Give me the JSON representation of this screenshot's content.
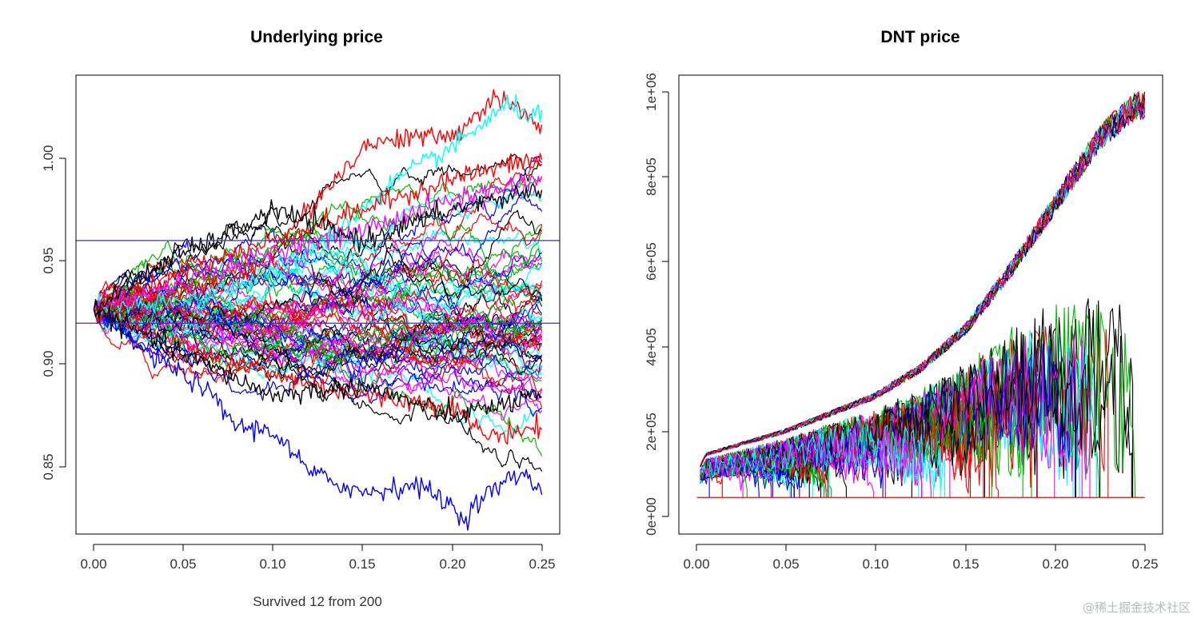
{
  "watermark": "@稀土掘金技术社区",
  "palette": {
    "black": "#000000",
    "red": "#ff0000",
    "green": "#00bb00",
    "blue": "#0000ff",
    "cyan": "#00ffff",
    "magenta": "#ff00ff",
    "barrier_line": "#3333cc"
  },
  "chart_data": [
    {
      "type": "line",
      "title": "Underlying price",
      "xlabel": "Survived 12 from 200",
      "ylabel": "",
      "xlim": [
        -0.01,
        0.26
      ],
      "ylim": [
        0.818,
        1.04
      ],
      "xticks": [
        0.0,
        0.05,
        0.1,
        0.15,
        0.2,
        0.25
      ],
      "xtick_labels": [
        "0.00",
        "0.05",
        "0.10",
        "0.15",
        "0.20",
        "0.25"
      ],
      "yticks": [
        0.85,
        0.9,
        0.95,
        1.0
      ],
      "ytick_labels": [
        "0.85",
        "0.90",
        "0.95",
        "1.00"
      ],
      "grid": false,
      "n_paths": 200,
      "start_value": 0.9266,
      "horizontal_lines": [
        0.92,
        0.96
      ],
      "series_colors": [
        "black",
        "red",
        "green",
        "blue",
        "cyan",
        "magenta"
      ],
      "highlighted_paths": [
        {
          "color": "red",
          "x": [
            0,
            0.05,
            0.08,
            0.1,
            0.12,
            0.15,
            0.17,
            0.2,
            0.225,
            0.25
          ],
          "y": [
            0.9266,
            0.935,
            0.94,
            0.955,
            0.975,
            1.005,
            1.01,
            1.01,
            1.03,
            1.015
          ]
        },
        {
          "color": "cyan",
          "x": [
            0,
            0.05,
            0.1,
            0.13,
            0.15,
            0.17,
            0.2,
            0.23,
            0.25
          ],
          "y": [
            0.9266,
            0.93,
            0.945,
            0.96,
            0.975,
            0.99,
            1.005,
            1.025,
            1.02
          ]
        },
        {
          "color": "blue",
          "x": [
            0,
            0.03,
            0.06,
            0.08,
            0.1,
            0.12,
            0.15,
            0.18,
            0.2,
            0.205,
            0.22,
            0.24,
            0.25
          ],
          "y": [
            0.9266,
            0.905,
            0.89,
            0.87,
            0.868,
            0.848,
            0.838,
            0.842,
            0.832,
            0.825,
            0.838,
            0.848,
            0.838
          ]
        },
        {
          "color": "red",
          "x": [
            0,
            0.05,
            0.1,
            0.15,
            0.2,
            0.22,
            0.25
          ],
          "y": [
            0.9266,
            0.91,
            0.895,
            0.885,
            0.88,
            0.865,
            0.87
          ]
        },
        {
          "color": "red",
          "x": [
            0,
            0.05,
            0.1,
            0.15,
            0.2,
            0.25
          ],
          "y": [
            0.9266,
            0.945,
            0.96,
            0.975,
            0.99,
            1.0
          ]
        },
        {
          "color": "magenta",
          "x": [
            0,
            0.05,
            0.1,
            0.15,
            0.2,
            0.25
          ],
          "y": [
            0.9266,
            0.94,
            0.955,
            0.965,
            0.98,
            0.99
          ]
        },
        {
          "color": "black",
          "x": [
            0,
            0.04,
            0.08,
            0.1,
            0.15,
            0.2,
            0.25
          ],
          "y": [
            0.9266,
            0.95,
            0.965,
            0.975,
            0.96,
            0.975,
            0.985
          ]
        },
        {
          "color": "black",
          "x": [
            0,
            0.05,
            0.1,
            0.15,
            0.2,
            0.25
          ],
          "y": [
            0.9266,
            0.905,
            0.885,
            0.89,
            0.875,
            0.885
          ]
        }
      ]
    },
    {
      "type": "line",
      "title": "DNT price",
      "xlabel": "",
      "ylabel": "",
      "xlim": [
        -0.01,
        0.26
      ],
      "ylim": [
        -90000,
        1040000
      ],
      "xticks": [
        0.0,
        0.05,
        0.1,
        0.15,
        0.2,
        0.25
      ],
      "xtick_labels": [
        "0.00",
        "0.05",
        "0.10",
        "0.15",
        "0.20",
        "0.25"
      ],
      "yticks": [
        0,
        200000,
        400000,
        600000,
        800000,
        1000000
      ],
      "ytick_labels": [
        "0e+00",
        "2e+05",
        "4e+05",
        "6e+05",
        "8e+05",
        "1e+06"
      ],
      "grid": false,
      "n_paths": 200,
      "envelope": {
        "x": [
          0,
          0.005,
          0.05,
          0.1,
          0.125,
          0.15,
          0.175,
          0.2,
          0.225,
          0.245,
          0.25
        ],
        "y": [
          60000,
          110000,
          170000,
          260000,
          330000,
          430000,
          580000,
          750000,
          920000,
          1000000,
          1000000
        ]
      },
      "knocked_out_x": [
        0.12,
        0.16,
        0.182,
        0.19,
        0.21,
        0.215,
        0.225
      ],
      "floor_value": 0,
      "series_colors": [
        "black",
        "red",
        "green",
        "blue",
        "cyan",
        "magenta"
      ]
    }
  ]
}
